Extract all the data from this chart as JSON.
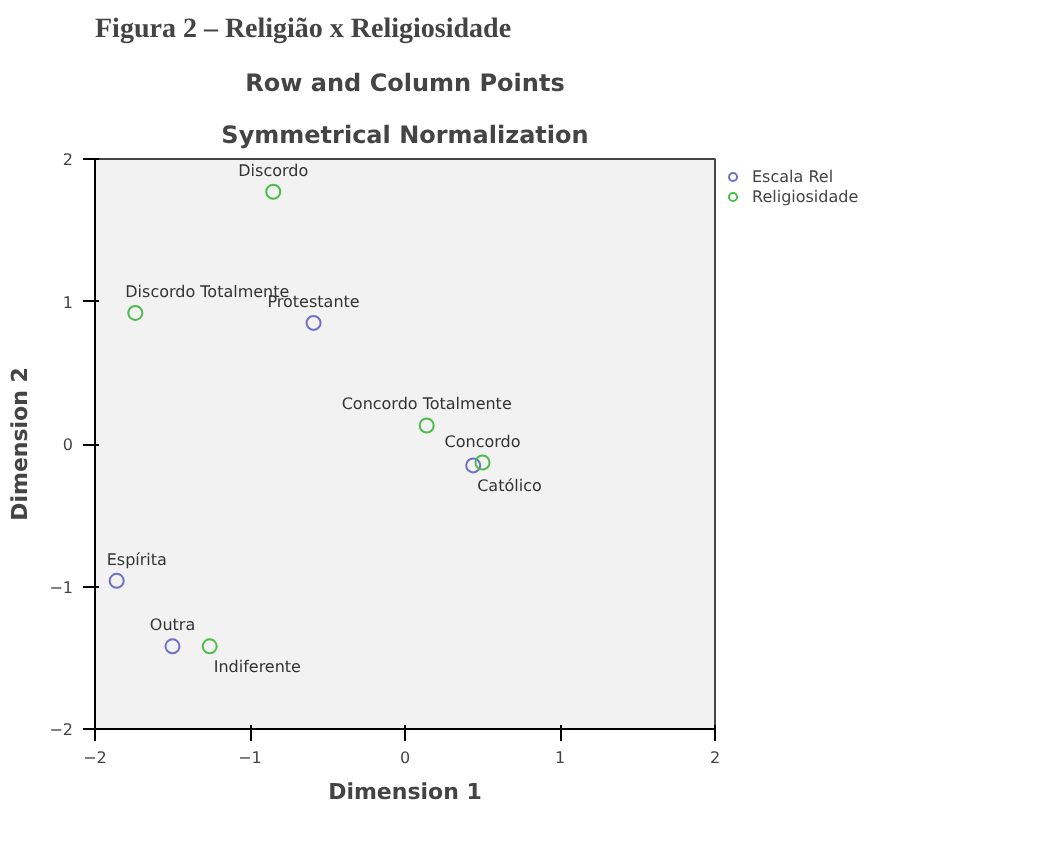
{
  "chart_data": {
    "type": "scatter",
    "title": "Row and Column Points",
    "subtitle": "Symmetrical Normalization",
    "xlabel": "Dimension 1",
    "ylabel": "Dimension 2",
    "annotations": [
      "Figura 2 – Religião x Religiosidade",
      {
        "text": "Discordo",
        "x": -0.85,
        "y": 1.77
      },
      {
        "text": "Discordo Totalmente",
        "x": -1.74,
        "y": 0.92
      },
      {
        "text": "Protestante",
        "x": -0.59,
        "y": 0.85
      },
      {
        "text": "Concordo Totalmente",
        "x": 0.14,
        "y": 0.13
      },
      {
        "text": "Concordo",
        "x": 0.5,
        "y": -0.13
      },
      {
        "text": "Católico",
        "x": 0.44,
        "y": -0.15
      },
      {
        "text": "Espírita",
        "x": -1.86,
        "y": -0.96
      },
      {
        "text": "Outra",
        "x": -1.5,
        "y": -1.42
      },
      {
        "text": "Indiferente",
        "x": -1.26,
        "y": -1.42
      }
    ],
    "series": [
      {
        "name": "Escala Rel",
        "color": "#6f6fc8",
        "x": [
          -0.59,
          0.44,
          -1.86,
          -1.5
        ],
        "values": [
          0.85,
          -0.15,
          -0.96,
          -1.42
        ]
      },
      {
        "name": "Religiosidade",
        "color": "#4dbb4d",
        "x": [
          -0.85,
          -1.74,
          0.14,
          0.5,
          -1.26
        ],
        "values": [
          1.77,
          0.92,
          0.13,
          -0.13,
          -1.42
        ]
      }
    ],
    "xlim": [
      -2,
      2
    ],
    "ylim": [
      -2,
      2
    ],
    "xticks": [
      -2,
      -1,
      0,
      1,
      2
    ],
    "yticks": [
      -2,
      -1,
      0,
      1,
      2
    ],
    "grid": false,
    "legend": "top right",
    "marker": "circle"
  }
}
